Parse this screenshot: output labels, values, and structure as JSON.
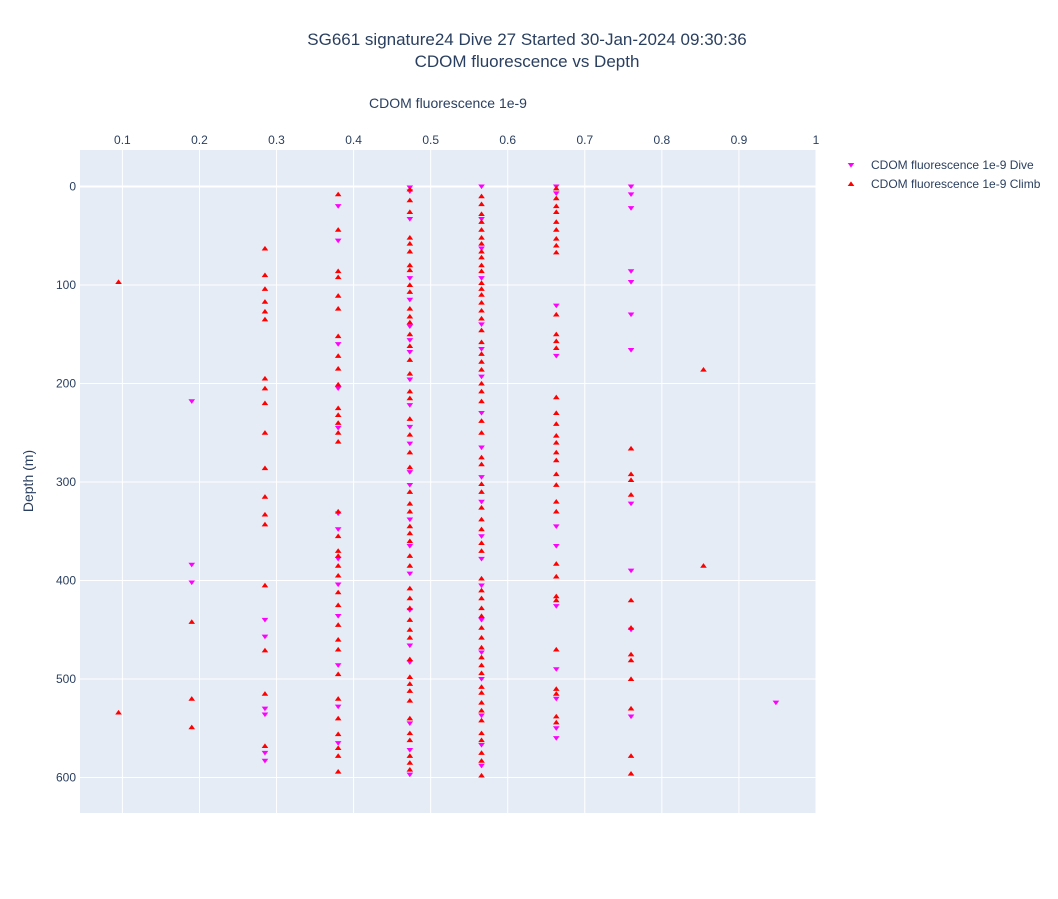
{
  "chart_data": {
    "type": "scatter",
    "title": "SG661 signature24 Dive 27 Started 30-Jan-2024 09:30:36",
    "subtitle": "CDOM fluorescence vs Depth",
    "xlabel": "CDOM fluorescence 1e-9",
    "ylabel": "Depth (m)",
    "x_axis_position": "top",
    "y_axis_reversed": true,
    "xlim": [
      0.045,
      1.0
    ],
    "ylim": [
      636,
      -37
    ],
    "xticks": [
      0.1,
      0.2,
      0.3,
      0.4,
      0.5,
      0.6,
      0.7,
      0.8,
      0.9,
      1
    ],
    "xtick_labels": [
      "0.1",
      "0.2",
      "0.3",
      "0.4",
      "0.5",
      "0.6",
      "0.7",
      "0.8",
      "0.9",
      "1"
    ],
    "yticks": [
      0,
      100,
      200,
      300,
      400,
      500,
      600
    ],
    "ytick_labels": [
      "0",
      "100",
      "200",
      "300",
      "400",
      "500",
      "600"
    ],
    "grid": true,
    "legend_position": "top-right",
    "series": [
      {
        "name": "CDOM fluorescence 1e-9 Dive",
        "color": "#ff00ff",
        "marker": "triangle-down",
        "points": [
          [
            0.473,
            1
          ],
          [
            0.473,
            5
          ],
          [
            0.473,
            33
          ],
          [
            0.473,
            93
          ],
          [
            0.473,
            115
          ],
          [
            0.473,
            142
          ],
          [
            0.473,
            156
          ],
          [
            0.473,
            168
          ],
          [
            0.473,
            196
          ],
          [
            0.473,
            222
          ],
          [
            0.473,
            244
          ],
          [
            0.473,
            261
          ],
          [
            0.473,
            290
          ],
          [
            0.473,
            303
          ],
          [
            0.473,
            338
          ],
          [
            0.473,
            365
          ],
          [
            0.473,
            393
          ],
          [
            0.473,
            430
          ],
          [
            0.473,
            466
          ],
          [
            0.473,
            483
          ],
          [
            0.473,
            545
          ],
          [
            0.473,
            572
          ],
          [
            0.473,
            597
          ],
          [
            0.566,
            0
          ],
          [
            0.566,
            33
          ],
          [
            0.566,
            63
          ],
          [
            0.566,
            93
          ],
          [
            0.566,
            140
          ],
          [
            0.566,
            165
          ],
          [
            0.566,
            193
          ],
          [
            0.566,
            230
          ],
          [
            0.566,
            265
          ],
          [
            0.566,
            295
          ],
          [
            0.566,
            320
          ],
          [
            0.566,
            355
          ],
          [
            0.566,
            378
          ],
          [
            0.566,
            405
          ],
          [
            0.566,
            440
          ],
          [
            0.566,
            473
          ],
          [
            0.566,
            500
          ],
          [
            0.566,
            537
          ],
          [
            0.566,
            567
          ],
          [
            0.566,
            588
          ],
          [
            0.38,
            20
          ],
          [
            0.38,
            55
          ],
          [
            0.38,
            160
          ],
          [
            0.38,
            205
          ],
          [
            0.38,
            245
          ],
          [
            0.38,
            332
          ],
          [
            0.38,
            348
          ],
          [
            0.38,
            378
          ],
          [
            0.38,
            404
          ],
          [
            0.38,
            436
          ],
          [
            0.38,
            486
          ],
          [
            0.38,
            528
          ],
          [
            0.38,
            565
          ],
          [
            0.663,
            0
          ],
          [
            0.663,
            7
          ],
          [
            0.663,
            121
          ],
          [
            0.663,
            172
          ],
          [
            0.663,
            345
          ],
          [
            0.663,
            365
          ],
          [
            0.663,
            426
          ],
          [
            0.663,
            490
          ],
          [
            0.663,
            520
          ],
          [
            0.663,
            550
          ],
          [
            0.663,
            560
          ],
          [
            0.76,
            0
          ],
          [
            0.76,
            8
          ],
          [
            0.76,
            22
          ],
          [
            0.76,
            86
          ],
          [
            0.76,
            97
          ],
          [
            0.76,
            130
          ],
          [
            0.76,
            166
          ],
          [
            0.76,
            322
          ],
          [
            0.76,
            390
          ],
          [
            0.76,
            450
          ],
          [
            0.76,
            538
          ],
          [
            0.285,
            440
          ],
          [
            0.285,
            457
          ],
          [
            0.285,
            530
          ],
          [
            0.285,
            536
          ],
          [
            0.285,
            575
          ],
          [
            0.285,
            583
          ],
          [
            0.19,
            218
          ],
          [
            0.19,
            384
          ],
          [
            0.19,
            402
          ],
          [
            0.948,
            524
          ]
        ]
      },
      {
        "name": "CDOM fluorescence 1e-9 Climb",
        "color": "#ff0000",
        "marker": "triangle-up",
        "points": [
          [
            0.095,
            97
          ],
          [
            0.095,
            534
          ],
          [
            0.19,
            442
          ],
          [
            0.19,
            520
          ],
          [
            0.19,
            549
          ],
          [
            0.285,
            63
          ],
          [
            0.285,
            90
          ],
          [
            0.285,
            104
          ],
          [
            0.285,
            117
          ],
          [
            0.285,
            127
          ],
          [
            0.285,
            135
          ],
          [
            0.285,
            195
          ],
          [
            0.285,
            205
          ],
          [
            0.285,
            220
          ],
          [
            0.285,
            250
          ],
          [
            0.285,
            286
          ],
          [
            0.285,
            315
          ],
          [
            0.285,
            333
          ],
          [
            0.285,
            343
          ],
          [
            0.285,
            405
          ],
          [
            0.285,
            471
          ],
          [
            0.285,
            515
          ],
          [
            0.285,
            568
          ],
          [
            0.38,
            8
          ],
          [
            0.38,
            44
          ],
          [
            0.38,
            86
          ],
          [
            0.38,
            92
          ],
          [
            0.38,
            111
          ],
          [
            0.38,
            124
          ],
          [
            0.38,
            152
          ],
          [
            0.38,
            172
          ],
          [
            0.38,
            185
          ],
          [
            0.38,
            201
          ],
          [
            0.38,
            225
          ],
          [
            0.38,
            232
          ],
          [
            0.38,
            240
          ],
          [
            0.38,
            250
          ],
          [
            0.38,
            259
          ],
          [
            0.38,
            330
          ],
          [
            0.38,
            355
          ],
          [
            0.38,
            370
          ],
          [
            0.38,
            375
          ],
          [
            0.38,
            385
          ],
          [
            0.38,
            395
          ],
          [
            0.38,
            412
          ],
          [
            0.38,
            425
          ],
          [
            0.38,
            445
          ],
          [
            0.38,
            460
          ],
          [
            0.38,
            470
          ],
          [
            0.38,
            495
          ],
          [
            0.38,
            520
          ],
          [
            0.38,
            540
          ],
          [
            0.38,
            556
          ],
          [
            0.38,
            570
          ],
          [
            0.38,
            578
          ],
          [
            0.38,
            594
          ],
          [
            0.473,
            3
          ],
          [
            0.473,
            14
          ],
          [
            0.473,
            26
          ],
          [
            0.473,
            52
          ],
          [
            0.473,
            58
          ],
          [
            0.473,
            66
          ],
          [
            0.473,
            80
          ],
          [
            0.473,
            85
          ],
          [
            0.473,
            100
          ],
          [
            0.473,
            107
          ],
          [
            0.473,
            124
          ],
          [
            0.473,
            132
          ],
          [
            0.473,
            138
          ],
          [
            0.473,
            150
          ],
          [
            0.473,
            162
          ],
          [
            0.473,
            176
          ],
          [
            0.473,
            190
          ],
          [
            0.473,
            208
          ],
          [
            0.473,
            215
          ],
          [
            0.473,
            236
          ],
          [
            0.473,
            252
          ],
          [
            0.473,
            270
          ],
          [
            0.473,
            285
          ],
          [
            0.473,
            310
          ],
          [
            0.473,
            322
          ],
          [
            0.473,
            330
          ],
          [
            0.473,
            345
          ],
          [
            0.473,
            352
          ],
          [
            0.473,
            360
          ],
          [
            0.473,
            375
          ],
          [
            0.473,
            385
          ],
          [
            0.473,
            408
          ],
          [
            0.473,
            418
          ],
          [
            0.473,
            428
          ],
          [
            0.473,
            440
          ],
          [
            0.473,
            450
          ],
          [
            0.473,
            458
          ],
          [
            0.473,
            480
          ],
          [
            0.473,
            498
          ],
          [
            0.473,
            505
          ],
          [
            0.473,
            512
          ],
          [
            0.473,
            522
          ],
          [
            0.473,
            540
          ],
          [
            0.473,
            555
          ],
          [
            0.473,
            562
          ],
          [
            0.473,
            578
          ],
          [
            0.473,
            585
          ],
          [
            0.473,
            592
          ],
          [
            0.566,
            10
          ],
          [
            0.566,
            18
          ],
          [
            0.566,
            28
          ],
          [
            0.566,
            36
          ],
          [
            0.566,
            44
          ],
          [
            0.566,
            52
          ],
          [
            0.566,
            58
          ],
          [
            0.566,
            66
          ],
          [
            0.566,
            72
          ],
          [
            0.566,
            80
          ],
          [
            0.566,
            86
          ],
          [
            0.566,
            98
          ],
          [
            0.566,
            104
          ],
          [
            0.566,
            110
          ],
          [
            0.566,
            118
          ],
          [
            0.566,
            126
          ],
          [
            0.566,
            134
          ],
          [
            0.566,
            146
          ],
          [
            0.566,
            158
          ],
          [
            0.566,
            170
          ],
          [
            0.566,
            178
          ],
          [
            0.566,
            186
          ],
          [
            0.566,
            200
          ],
          [
            0.566,
            208
          ],
          [
            0.566,
            218
          ],
          [
            0.566,
            238
          ],
          [
            0.566,
            250
          ],
          [
            0.566,
            275
          ],
          [
            0.566,
            282
          ],
          [
            0.566,
            302
          ],
          [
            0.566,
            310
          ],
          [
            0.566,
            326
          ],
          [
            0.566,
            338
          ],
          [
            0.566,
            348
          ],
          [
            0.566,
            362
          ],
          [
            0.566,
            370
          ],
          [
            0.566,
            398
          ],
          [
            0.566,
            410
          ],
          [
            0.566,
            418
          ],
          [
            0.566,
            428
          ],
          [
            0.566,
            436
          ],
          [
            0.566,
            448
          ],
          [
            0.566,
            458
          ],
          [
            0.566,
            468
          ],
          [
            0.566,
            478
          ],
          [
            0.566,
            486
          ],
          [
            0.566,
            494
          ],
          [
            0.566,
            508
          ],
          [
            0.566,
            514
          ],
          [
            0.566,
            524
          ],
          [
            0.566,
            532
          ],
          [
            0.566,
            542
          ],
          [
            0.566,
            555
          ],
          [
            0.566,
            562
          ],
          [
            0.566,
            575
          ],
          [
            0.566,
            583
          ],
          [
            0.566,
            598
          ],
          [
            0.663,
            2
          ],
          [
            0.663,
            12
          ],
          [
            0.663,
            20
          ],
          [
            0.663,
            26
          ],
          [
            0.663,
            36
          ],
          [
            0.663,
            44
          ],
          [
            0.663,
            53
          ],
          [
            0.663,
            60
          ],
          [
            0.663,
            67
          ],
          [
            0.663,
            130
          ],
          [
            0.663,
            150
          ],
          [
            0.663,
            157
          ],
          [
            0.663,
            164
          ],
          [
            0.663,
            214
          ],
          [
            0.663,
            230
          ],
          [
            0.663,
            241
          ],
          [
            0.663,
            253
          ],
          [
            0.663,
            260
          ],
          [
            0.663,
            270
          ],
          [
            0.663,
            278
          ],
          [
            0.663,
            292
          ],
          [
            0.663,
            303
          ],
          [
            0.663,
            320
          ],
          [
            0.663,
            330
          ],
          [
            0.663,
            383
          ],
          [
            0.663,
            396
          ],
          [
            0.663,
            416
          ],
          [
            0.663,
            420
          ],
          [
            0.663,
            470
          ],
          [
            0.663,
            510
          ],
          [
            0.663,
            515
          ],
          [
            0.663,
            538
          ],
          [
            0.663,
            544
          ],
          [
            0.76,
            266
          ],
          [
            0.76,
            292
          ],
          [
            0.76,
            298
          ],
          [
            0.76,
            313
          ],
          [
            0.76,
            420
          ],
          [
            0.76,
            448
          ],
          [
            0.76,
            475
          ],
          [
            0.76,
            481
          ],
          [
            0.76,
            500
          ],
          [
            0.76,
            530
          ],
          [
            0.76,
            578
          ],
          [
            0.76,
            596
          ],
          [
            0.854,
            186
          ],
          [
            0.854,
            385
          ]
        ]
      }
    ]
  }
}
